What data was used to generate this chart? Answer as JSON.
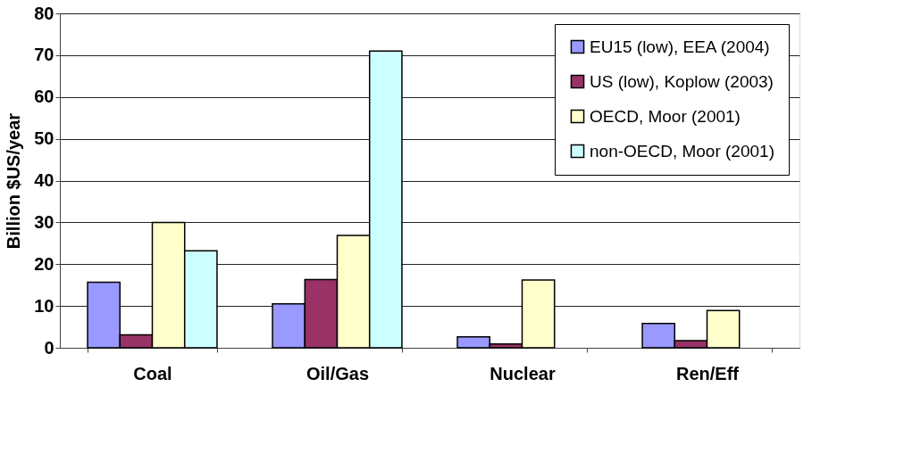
{
  "chart_data": {
    "type": "bar",
    "ylabel": "Billion $US/year",
    "categories": [
      "Coal",
      "Oil/Gas",
      "Nuclear",
      "Ren/Eff"
    ],
    "series": [
      {
        "name": "EU15 (low), EEA (2004)",
        "color": "#9999ff",
        "values": [
          15.7,
          10.5,
          2.6,
          5.8
        ]
      },
      {
        "name": "US (low), Koplow (2003)",
        "color": "#993366",
        "values": [
          3.1,
          16.3,
          0.9,
          1.7
        ]
      },
      {
        "name": "OECD, Moor (2001)",
        "color": "#ffffcc",
        "values": [
          30,
          26.9,
          16.2,
          8.9
        ]
      },
      {
        "name": "non-OECD, Moor (2001)",
        "color": "#ccffff",
        "values": [
          23.2,
          71,
          null,
          null
        ]
      }
    ],
    "ylim": [
      0,
      80
    ],
    "yticks": [
      0,
      10,
      20,
      30,
      40,
      50,
      60,
      70,
      80
    ],
    "grid": "y",
    "legend": "top right"
  }
}
